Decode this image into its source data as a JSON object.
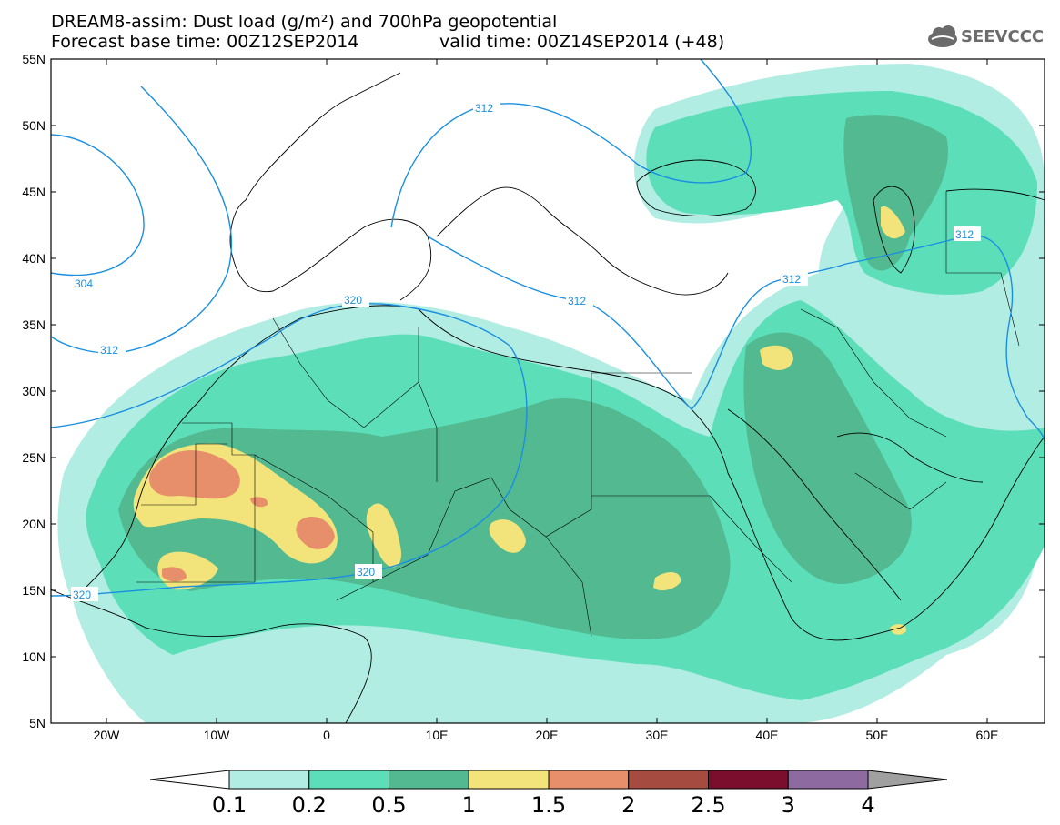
{
  "header": {
    "title": "DREAM8-assim: Dust load (g/m²) and 700hPa geopotential",
    "base_time": "Forecast base time: 00Z12SEP2014",
    "valid_time": "valid time: 00Z14SEP2014 (+48)",
    "logo_text": "SEEVCCC",
    "logo_icon": "cloud-icon"
  },
  "map": {
    "lat_range": [
      5,
      55
    ],
    "lon_range": [
      -25,
      65
    ],
    "lat_labels": [
      "55N",
      "50N",
      "45N",
      "40N",
      "35N",
      "30N",
      "25N",
      "20N",
      "15N",
      "10N",
      "5N"
    ],
    "lon_labels": [
      "20W",
      "10W",
      "0",
      "10E",
      "20E",
      "30E",
      "40E",
      "50E",
      "60E"
    ],
    "contour_labels": [
      "312",
      "304",
      "312",
      "320",
      "312",
      "312",
      "312",
      "320",
      "320"
    ],
    "colors": {
      "level_0_1": "#b2ede3",
      "level_0_2": "#5cdfb9",
      "level_0_5": "#52b990",
      "level_1": "#f2e47a",
      "level_1_5": "#e78f6a",
      "level_2": "#a64b3f",
      "level_2_5": "#7b0e2c",
      "level_3": "#8d6aa0",
      "level_4": "#a0a0a0",
      "contour": "#1a8fe0"
    }
  },
  "colorbar": {
    "labels": [
      "0.1",
      "0.2",
      "0.5",
      "1",
      "1.5",
      "2",
      "2.5",
      "3",
      "4"
    ],
    "colors": [
      "#b2ede3",
      "#5cdfb9",
      "#52b990",
      "#f2e47a",
      "#e78f6a",
      "#a64b3f",
      "#7b0e2c",
      "#8d6aa0"
    ],
    "low_extend": "#ffffff",
    "high_extend": "#a0a0a0"
  }
}
